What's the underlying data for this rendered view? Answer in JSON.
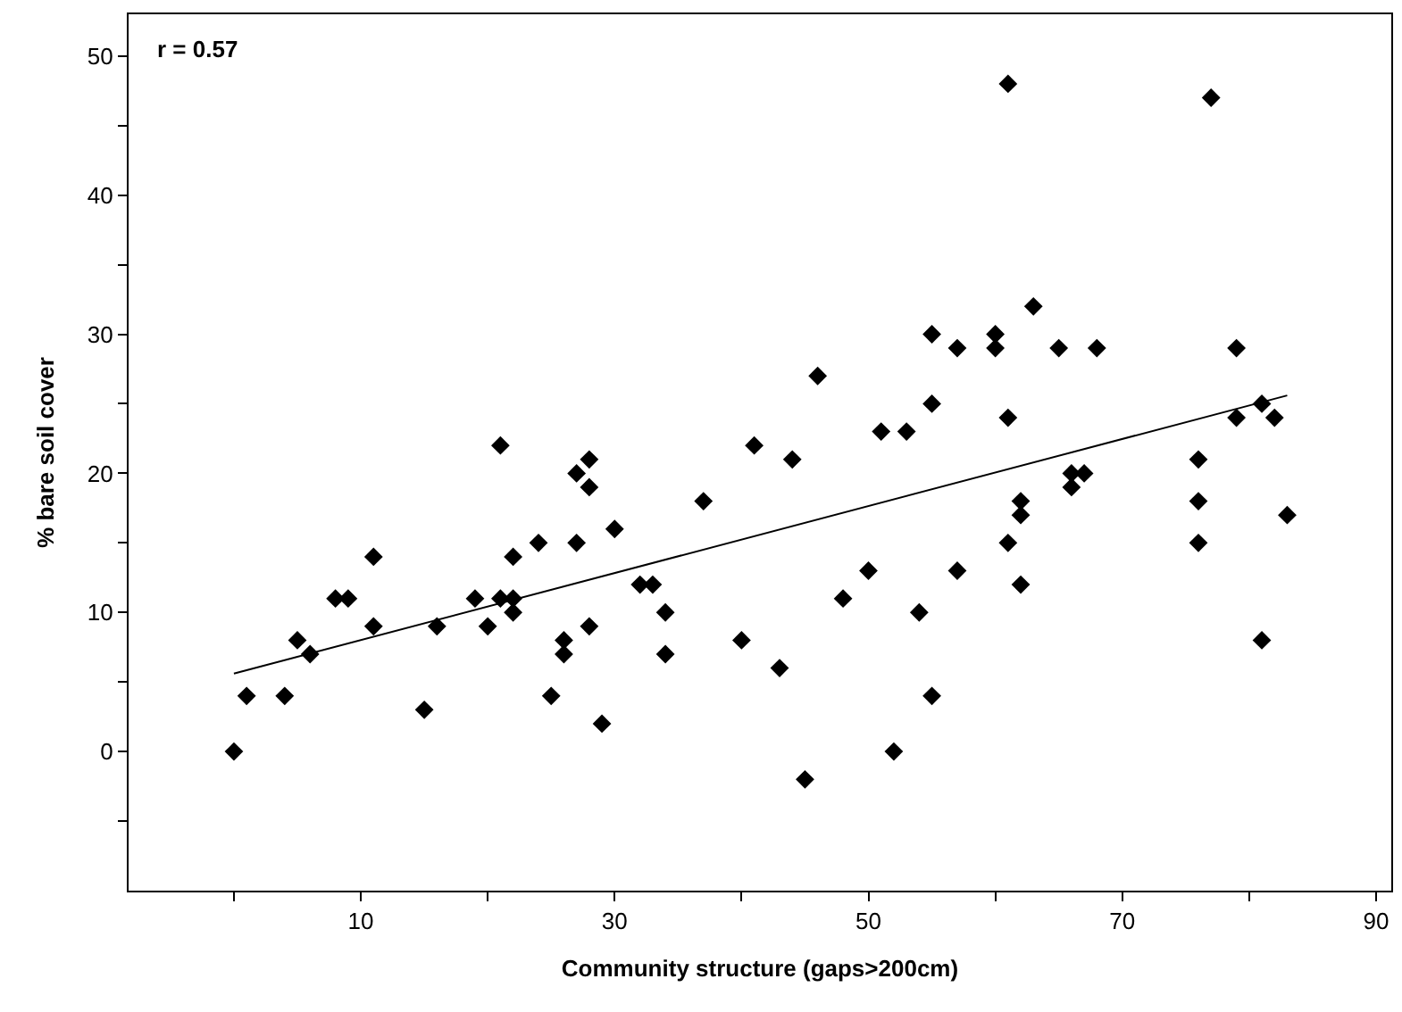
{
  "chart_data": {
    "type": "scatter",
    "xlabel": "Community structure (gaps>200cm)",
    "ylabel": "% bare soil cover",
    "annotations": [
      "r = 0.57"
    ],
    "series": [
      {
        "color": "#000000",
        "marker": "diamond",
        "x": [
          28,
          27,
          28,
          37,
          30,
          11,
          22,
          24,
          27,
          8,
          9,
          19,
          21,
          22,
          32,
          33,
          11,
          16,
          20,
          22,
          28,
          34,
          5,
          6,
          26,
          26,
          34,
          40,
          1,
          4,
          25,
          15,
          29,
          0,
          44,
          76,
          66,
          67,
          66,
          62,
          62,
          76,
          83,
          61,
          76,
          50,
          57,
          48,
          54,
          62,
          81,
          43,
          55,
          52,
          45,
          21,
          41,
          61,
          77,
          46,
          55,
          57,
          60,
          60,
          63,
          65,
          68,
          79,
          51,
          53,
          55,
          61,
          81,
          79,
          82
        ],
        "values": [
          21,
          20,
          19,
          18,
          16,
          14,
          14,
          15,
          15,
          11,
          11,
          11,
          11,
          11,
          12,
          12,
          9,
          9,
          9,
          10,
          9,
          10,
          8,
          7,
          8,
          7,
          7,
          8,
          4,
          4,
          4,
          3,
          2,
          0,
          21,
          21,
          20,
          20,
          19,
          18,
          17,
          18,
          17,
          15,
          15,
          13,
          13,
          11,
          10,
          12,
          8,
          6,
          4,
          0,
          -2,
          22,
          22,
          48,
          47,
          27,
          30,
          29,
          30,
          29,
          32,
          29,
          29,
          29,
          23,
          23,
          25,
          24,
          25,
          24,
          24
        ]
      },
      {
        "type": "line",
        "color": "#000000",
        "marker": "none",
        "line_style": "solid",
        "x": [
          0,
          83
        ],
        "values": [
          5.6,
          25.6
        ]
      }
    ],
    "xlim": [
      -8.3,
      91.2
    ],
    "xticks": [
      {
        "value": 0,
        "label": null
      },
      10,
      {
        "value": 20,
        "label": null
      },
      30,
      {
        "value": 40,
        "label": null
      },
      50,
      {
        "value": 60,
        "label": null
      },
      70,
      {
        "value": 80,
        "label": null
      },
      90
    ],
    "ylim": [
      -10,
      53
    ],
    "yticks": [
      {
        "value": -5,
        "label": null
      },
      0,
      {
        "value": 5,
        "label": null
      },
      10,
      {
        "value": 15,
        "label": null
      },
      20,
      {
        "value": 25,
        "label": null
      },
      30,
      {
        "value": 35,
        "label": null
      },
      40,
      {
        "value": 45,
        "label": null
      },
      50
    ]
  }
}
